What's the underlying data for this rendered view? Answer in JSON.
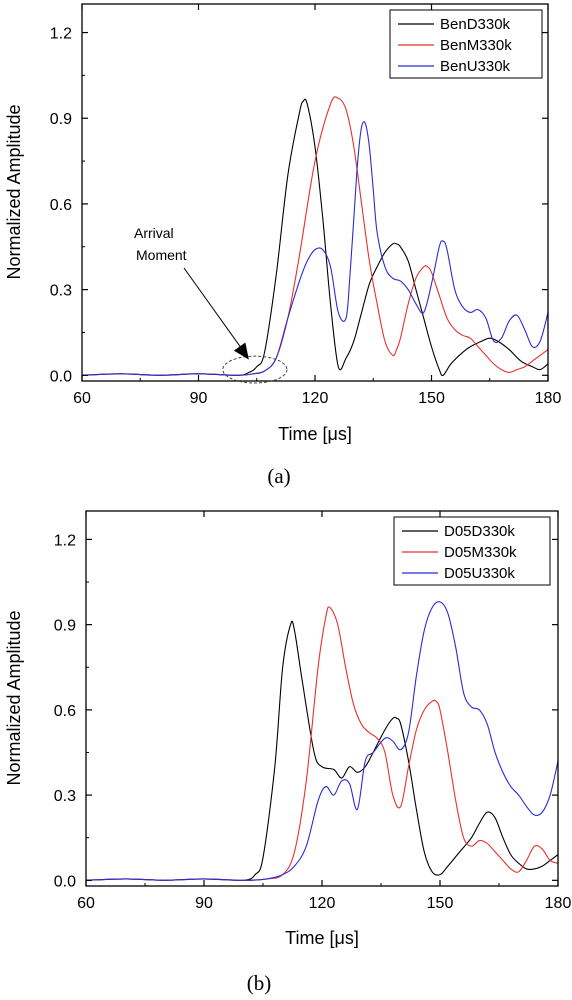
{
  "chart_data": [
    {
      "type": "line",
      "panel_label": "(a)",
      "xlabel": "Time [μs]",
      "ylabel": "Normalized Amplitude",
      "xlim": [
        60,
        180
      ],
      "ylim": [
        -0.02,
        1.3
      ],
      "xticks": [
        60,
        90,
        120,
        150,
        180
      ],
      "yticks": [
        0.0,
        0.3,
        0.6,
        0.9,
        1.2
      ],
      "xtick_labels": [
        "60",
        "90",
        "120",
        "150",
        "180"
      ],
      "ytick_labels": [
        "0.0",
        "0.3",
        "0.6",
        "0.9",
        "1.2"
      ],
      "legend_position": "top-right",
      "annotation": {
        "lines": [
          "Arrival",
          "Moment"
        ],
        "points_to": [
          104,
          0.02
        ],
        "ellipse_center": [
          104,
          0.02
        ],
        "ellipse_radius": [
          8,
          0.04
        ]
      },
      "series": [
        {
          "name": "BenD330k",
          "color": "#000000",
          "x": [
            60,
            70,
            80,
            90,
            100,
            103,
            105,
            107,
            110,
            113,
            116,
            117,
            118,
            120,
            122,
            124,
            126,
            128,
            130,
            132,
            134,
            136,
            138,
            140,
            141,
            142,
            144,
            146,
            148,
            150,
            152,
            153,
            155,
            158,
            160,
            163,
            165,
            167,
            170,
            173,
            176,
            178,
            180
          ],
          "y": [
            0.0,
            0.005,
            0.0,
            0.005,
            0.0,
            0.01,
            0.03,
            0.08,
            0.35,
            0.7,
            0.92,
            0.96,
            0.95,
            0.8,
            0.55,
            0.25,
            0.03,
            0.06,
            0.12,
            0.22,
            0.32,
            0.38,
            0.43,
            0.46,
            0.46,
            0.45,
            0.4,
            0.3,
            0.2,
            0.1,
            0.02,
            0.0,
            0.04,
            0.08,
            0.1,
            0.12,
            0.13,
            0.12,
            0.09,
            0.05,
            0.03,
            0.02,
            0.04
          ]
        },
        {
          "name": "BenM330k",
          "color": "#e8312f",
          "x": [
            60,
            70,
            80,
            90,
            100,
            104,
            107,
            110,
            113,
            116,
            120,
            124,
            126,
            128,
            130,
            132,
            134,
            136,
            138,
            140,
            141,
            142,
            144,
            146,
            148,
            149,
            150,
            152,
            154,
            156,
            158,
            160,
            162,
            164,
            166,
            168,
            170,
            172,
            174,
            176,
            178,
            180
          ],
          "y": [
            0.0,
            0.005,
            0.0,
            0.005,
            0.0,
            0.005,
            0.015,
            0.06,
            0.2,
            0.42,
            0.75,
            0.95,
            0.97,
            0.93,
            0.8,
            0.6,
            0.4,
            0.25,
            0.12,
            0.07,
            0.09,
            0.13,
            0.25,
            0.34,
            0.38,
            0.38,
            0.36,
            0.28,
            0.2,
            0.16,
            0.14,
            0.13,
            0.1,
            0.07,
            0.04,
            0.02,
            0.01,
            0.02,
            0.03,
            0.05,
            0.07,
            0.09
          ]
        },
        {
          "name": "BenU330k",
          "color": "#2b2bd6",
          "x": [
            60,
            70,
            80,
            90,
            100,
            104,
            107,
            110,
            113,
            116,
            118,
            120,
            122,
            124,
            126,
            128,
            129,
            130,
            131,
            132,
            133,
            134,
            135,
            136,
            138,
            140,
            142,
            144,
            146,
            148,
            150,
            152,
            153,
            154,
            156,
            158,
            160,
            162,
            164,
            166,
            168,
            170,
            172,
            174,
            176,
            178,
            180
          ],
          "y": [
            0.0,
            0.005,
            0.0,
            0.005,
            0.0,
            0.005,
            0.015,
            0.06,
            0.2,
            0.33,
            0.4,
            0.44,
            0.44,
            0.38,
            0.22,
            0.2,
            0.35,
            0.55,
            0.75,
            0.87,
            0.88,
            0.8,
            0.65,
            0.5,
            0.38,
            0.34,
            0.33,
            0.3,
            0.25,
            0.22,
            0.32,
            0.45,
            0.47,
            0.44,
            0.3,
            0.24,
            0.22,
            0.23,
            0.2,
            0.12,
            0.13,
            0.19,
            0.21,
            0.16,
            0.1,
            0.12,
            0.22
          ]
        }
      ]
    },
    {
      "type": "line",
      "panel_label": "(b)",
      "xlabel": "Time [μs]",
      "ylabel": "Normalized Amplitude",
      "xlim": [
        60,
        180
      ],
      "ylim": [
        -0.02,
        1.3
      ],
      "xticks": [
        60,
        90,
        120,
        150,
        180
      ],
      "yticks": [
        0.0,
        0.3,
        0.6,
        0.9,
        1.2
      ],
      "xtick_labels": [
        "60",
        "90",
        "120",
        "150",
        "180"
      ],
      "ytick_labels": [
        "0.0",
        "0.3",
        "0.6",
        "0.9",
        "1.2"
      ],
      "legend_position": "top-right",
      "series": [
        {
          "name": "D05D330k",
          "color": "#000000",
          "x": [
            60,
            70,
            80,
            90,
            100,
            103,
            105,
            108,
            110,
            112,
            113,
            115,
            118,
            120,
            123,
            125,
            127,
            129,
            131,
            133,
            136,
            138,
            139,
            140,
            142,
            144,
            146,
            148,
            150,
            152,
            155,
            158,
            160,
            162,
            164,
            166,
            168,
            170,
            172,
            174,
            176,
            178,
            180
          ],
          "y": [
            0.0,
            0.005,
            0.0,
            0.005,
            0.0,
            0.02,
            0.08,
            0.4,
            0.75,
            0.9,
            0.88,
            0.7,
            0.45,
            0.4,
            0.39,
            0.36,
            0.4,
            0.38,
            0.4,
            0.45,
            0.53,
            0.57,
            0.57,
            0.55,
            0.42,
            0.25,
            0.1,
            0.03,
            0.02,
            0.05,
            0.1,
            0.15,
            0.2,
            0.24,
            0.22,
            0.15,
            0.09,
            0.06,
            0.04,
            0.04,
            0.05,
            0.07,
            0.09
          ]
        },
        {
          "name": "D05M330k",
          "color": "#e8312f",
          "x": [
            60,
            70,
            80,
            90,
            100,
            106,
            110,
            113,
            116,
            119,
            121,
            122,
            124,
            126,
            128,
            130,
            132,
            134,
            136,
            138,
            140,
            142,
            144,
            146,
            148,
            149,
            150,
            152,
            154,
            156,
            158,
            160,
            162,
            164,
            166,
            168,
            170,
            172,
            174,
            176,
            178,
            180
          ],
          "y": [
            0.0,
            0.005,
            0.0,
            0.005,
            0.0,
            0.005,
            0.02,
            0.1,
            0.35,
            0.75,
            0.93,
            0.96,
            0.9,
            0.75,
            0.62,
            0.55,
            0.52,
            0.5,
            0.45,
            0.3,
            0.26,
            0.4,
            0.53,
            0.6,
            0.63,
            0.63,
            0.6,
            0.45,
            0.28,
            0.15,
            0.12,
            0.14,
            0.13,
            0.1,
            0.07,
            0.04,
            0.03,
            0.07,
            0.12,
            0.11,
            0.07,
            0.06
          ]
        },
        {
          "name": "D05U330k",
          "color": "#2b2bd6",
          "x": [
            60,
            70,
            80,
            90,
            100,
            106,
            110,
            113,
            116,
            119,
            121,
            123,
            125,
            127,
            129,
            131,
            133,
            136,
            138,
            140,
            142,
            144,
            146,
            148,
            150,
            152,
            154,
            156,
            158,
            160,
            162,
            164,
            166,
            168,
            170,
            172,
            174,
            176,
            178,
            180
          ],
          "y": [
            0.0,
            0.005,
            0.0,
            0.005,
            0.0,
            0.005,
            0.02,
            0.05,
            0.12,
            0.28,
            0.33,
            0.3,
            0.35,
            0.34,
            0.25,
            0.42,
            0.45,
            0.5,
            0.49,
            0.46,
            0.52,
            0.72,
            0.88,
            0.96,
            0.98,
            0.94,
            0.82,
            0.66,
            0.61,
            0.6,
            0.55,
            0.45,
            0.38,
            0.33,
            0.3,
            0.26,
            0.23,
            0.24,
            0.3,
            0.42
          ]
        }
      ]
    }
  ]
}
